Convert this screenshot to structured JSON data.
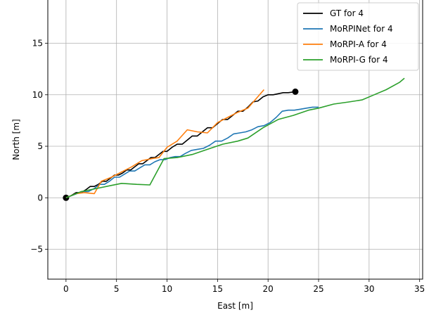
{
  "chart_data": {
    "type": "line",
    "xlabel": "East [m]",
    "ylabel": "North [m]",
    "xlim": [
      -1.8,
      35.3
    ],
    "ylim": [
      -7.9,
      19.2
    ],
    "xticks": [
      0,
      5,
      10,
      15,
      20,
      25,
      30,
      35
    ],
    "yticks": [
      -5,
      0,
      5,
      10,
      15
    ],
    "xtick_labels": [
      "0",
      "5",
      "10",
      "15",
      "20",
      "25",
      "30",
      "35"
    ],
    "ytick_labels": [
      "−5",
      "0",
      "5",
      "10",
      "15"
    ],
    "grid": true,
    "legend_position": "top-right",
    "series": [
      {
        "name": "GT for 4",
        "color": "#000000",
        "markers": [
          [
            0,
            0
          ],
          [
            22.7,
            10.3
          ]
        ],
        "x": [
          0,
          0.5,
          1.0,
          1.5,
          2.0,
          2.4,
          2.8,
          3.2,
          3.6,
          4.0,
          4.4,
          4.8,
          5.2,
          5.6,
          6.0,
          6.4,
          6.8,
          7.2,
          7.6,
          8.0,
          8.4,
          8.8,
          9.2,
          9.6,
          10.0,
          10.5,
          11.0,
          11.5,
          12.0,
          12.5,
          13.0,
          13.5,
          14.0,
          14.5,
          15.0,
          15.5,
          16.0,
          16.5,
          17.0,
          17.5,
          18.0,
          18.5,
          19.0,
          19.5,
          20.0,
          20.5,
          21.0,
          21.5,
          22.0,
          22.7
        ],
        "y": [
          0,
          0.2,
          0.5,
          0.5,
          0.8,
          1.1,
          1.1,
          1.3,
          1.6,
          1.6,
          1.9,
          2.2,
          2.2,
          2.4,
          2.7,
          2.7,
          3.0,
          3.3,
          3.3,
          3.6,
          3.9,
          3.9,
          4.2,
          4.5,
          4.5,
          4.9,
          5.2,
          5.2,
          5.6,
          6.0,
          6.0,
          6.4,
          6.8,
          6.8,
          7.2,
          7.6,
          7.6,
          8.0,
          8.4,
          8.4,
          8.8,
          9.3,
          9.4,
          9.8,
          10.0,
          10.0,
          10.1,
          10.2,
          10.2,
          10.3
        ]
      },
      {
        "name": "MoRPINet for 4",
        "color": "#1f77b4",
        "x": [
          0,
          0.8,
          1.6,
          2.2,
          2.8,
          3.3,
          3.8,
          4.3,
          4.8,
          5.3,
          5.8,
          6.3,
          6.8,
          7.3,
          7.8,
          8.3,
          8.8,
          9.3,
          9.8,
          10.3,
          10.8,
          11.3,
          11.8,
          12.4,
          13.0,
          13.6,
          14.2,
          14.8,
          15.4,
          16.0,
          16.6,
          17.2,
          17.8,
          18.4,
          19.0,
          19.6,
          20.2,
          20.8,
          21.4,
          22.0,
          22.6,
          23.2,
          23.8,
          24.4,
          25.0
        ],
        "y": [
          0,
          0.3,
          0.6,
          0.6,
          0.9,
          1.3,
          1.3,
          1.6,
          2.0,
          2.0,
          2.3,
          2.6,
          2.6,
          2.9,
          3.2,
          3.2,
          3.5,
          3.7,
          3.7,
          3.9,
          4.0,
          4.0,
          4.3,
          4.6,
          4.7,
          4.8,
          5.1,
          5.5,
          5.5,
          5.8,
          6.2,
          6.3,
          6.4,
          6.6,
          6.9,
          7.0,
          7.3,
          7.8,
          8.4,
          8.5,
          8.5,
          8.6,
          8.7,
          8.8,
          8.8
        ]
      },
      {
        "name": "MoRPI-A for 4",
        "color": "#ff7f0e",
        "x": [
          0,
          1.0,
          1.8,
          2.8,
          3.5,
          4.5,
          5.5,
          6.5,
          7.5,
          8.5,
          9.2,
          10.0,
          11.0,
          12.0,
          13.0,
          14.0,
          15.0,
          16.0,
          17.0,
          18.0,
          18.8,
          19.6
        ],
        "y": [
          0,
          0.4,
          0.5,
          0.4,
          1.6,
          2.0,
          2.5,
          3.0,
          3.6,
          3.8,
          3.9,
          4.9,
          5.5,
          6.6,
          6.4,
          6.3,
          7.3,
          7.8,
          8.3,
          8.7,
          9.6,
          10.5
        ]
      },
      {
        "name": "MoRPI-G for 4",
        "color": "#2ca02c",
        "x": [
          0,
          1.5,
          3.0,
          4.5,
          5.5,
          7.0,
          8.3,
          9.7,
          11.0,
          12.5,
          14.0,
          15.5,
          17.0,
          18.0,
          19.5,
          21.0,
          22.5,
          24.0,
          25.0,
          26.5,
          28.0,
          29.3,
          30.5,
          31.7,
          33.0,
          33.5
        ],
        "y": [
          0,
          0.6,
          0.9,
          1.2,
          1.4,
          1.3,
          1.25,
          3.8,
          3.9,
          4.2,
          4.7,
          5.2,
          5.5,
          5.8,
          6.8,
          7.6,
          8.0,
          8.5,
          8.7,
          9.1,
          9.3,
          9.5,
          10.0,
          10.5,
          11.2,
          11.6
        ]
      }
    ]
  }
}
